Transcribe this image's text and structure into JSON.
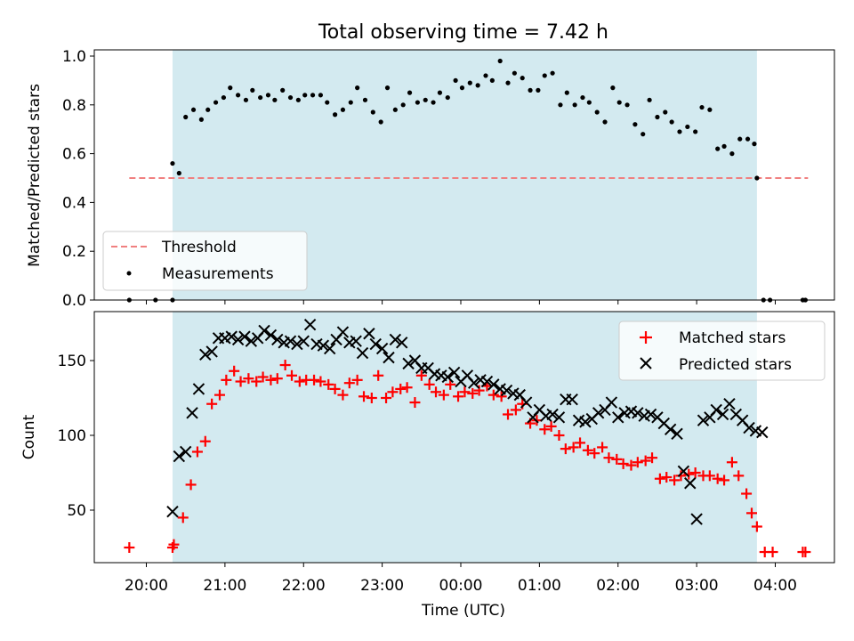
{
  "chart_data": [
    {
      "type": "scatter",
      "title": "Total observing time = 7.42 h",
      "ylabel": "Matched/Predicted stars",
      "xlabel": "",
      "ylim": [
        0,
        1.0
      ],
      "yticks": [
        "0.0",
        "0.2",
        "0.4",
        "0.6",
        "0.8",
        "1.0"
      ],
      "shaded_interval": [
        "20:20",
        "03:46"
      ],
      "threshold": {
        "name": "Threshold",
        "value": 0.5,
        "x_range": [
          "19:47",
          "04:25"
        ],
        "color": "#f08080"
      },
      "legend": {
        "placement": "lower-left",
        "entries": [
          "Threshold",
          "Measurements"
        ]
      },
      "series": [
        {
          "name": "Measurements",
          "color": "#000000",
          "x": [
            "19:47",
            "20:07",
            "20:20",
            "20:20",
            "20:25",
            "20:30",
            "20:36",
            "20:42",
            "20:47",
            "20:53",
            "20:59",
            "21:04",
            "21:10",
            "21:16",
            "21:21",
            "21:27",
            "21:33",
            "21:38",
            "21:44",
            "21:50",
            "21:56",
            "22:01",
            "22:07",
            "22:13",
            "22:18",
            "22:24",
            "22:30",
            "22:36",
            "22:41",
            "22:47",
            "22:53",
            "22:59",
            "23:04",
            "23:10",
            "23:16",
            "23:21",
            "23:27",
            "23:33",
            "23:39",
            "23:44",
            "23:50",
            "23:56",
            "00:01",
            "00:07",
            "00:13",
            "00:19",
            "00:24",
            "00:30",
            "00:36",
            "00:41",
            "00:47",
            "00:53",
            "00:59",
            "01:04",
            "01:10",
            "01:16",
            "01:21",
            "01:27",
            "01:33",
            "01:38",
            "01:44",
            "01:50",
            "01:56",
            "02:01",
            "02:07",
            "02:13",
            "02:19",
            "02:24",
            "02:30",
            "02:36",
            "02:41",
            "02:47",
            "02:53",
            "02:59",
            "03:04",
            "03:10",
            "03:16",
            "03:21",
            "03:27",
            "03:33",
            "03:39",
            "03:44",
            "03:46",
            "03:51",
            "03:56",
            "04:21",
            "04:23"
          ],
          "y": [
            0.0,
            0.0,
            0.0,
            0.56,
            0.52,
            0.75,
            0.78,
            0.74,
            0.78,
            0.81,
            0.83,
            0.87,
            0.84,
            0.82,
            0.86,
            0.83,
            0.84,
            0.82,
            0.86,
            0.83,
            0.82,
            0.84,
            0.84,
            0.84,
            0.81,
            0.76,
            0.78,
            0.81,
            0.87,
            0.82,
            0.77,
            0.73,
            0.87,
            0.78,
            0.8,
            0.85,
            0.81,
            0.82,
            0.81,
            0.85,
            0.83,
            0.9,
            0.87,
            0.89,
            0.88,
            0.92,
            0.9,
            0.98,
            0.89,
            0.93,
            0.91,
            0.86,
            0.86,
            0.92,
            0.93,
            0.8,
            0.85,
            0.8,
            0.83,
            0.81,
            0.77,
            0.73,
            0.87,
            0.81,
            0.8,
            0.72,
            0.68,
            0.82,
            0.75,
            0.77,
            0.73,
            0.69,
            0.71,
            0.69,
            0.79,
            0.78,
            0.62,
            0.63,
            0.6,
            0.66,
            0.66,
            0.64,
            0.5,
            0.0,
            0.0,
            0.0,
            0.0
          ]
        }
      ]
    },
    {
      "type": "scatter",
      "title": "",
      "xlabel": "Time (UTC)",
      "ylabel": "Count",
      "ylim": [
        15,
        180
      ],
      "yticks": [
        "50",
        "100",
        "150"
      ],
      "xticks": [
        "20:00",
        "21:00",
        "22:00",
        "23:00",
        "00:00",
        "01:00",
        "02:00",
        "03:00",
        "04:00"
      ],
      "shaded_interval": [
        "20:20",
        "03:46"
      ],
      "legend": {
        "placement": "top-right",
        "entries": [
          "Matched stars",
          "Predicted stars"
        ]
      },
      "series": [
        {
          "name": "Matched stars",
          "marker": "plus",
          "color": "#ff0000",
          "x": [
            "19:47",
            "20:20",
            "20:21",
            "20:28",
            "20:34",
            "20:39",
            "20:45",
            "20:50",
            "20:56",
            "21:01",
            "21:07",
            "21:12",
            "21:18",
            "21:24",
            "21:29",
            "21:35",
            "21:40",
            "21:46",
            "21:51",
            "21:57",
            "22:02",
            "22:08",
            "22:13",
            "22:19",
            "22:24",
            "22:30",
            "22:35",
            "22:41",
            "22:46",
            "22:52",
            "22:57",
            "23:03",
            "23:08",
            "23:14",
            "23:19",
            "23:25",
            "23:30",
            "23:36",
            "23:41",
            "23:47",
            "23:52",
            "23:58",
            "00:03",
            "00:09",
            "00:14",
            "00:20",
            "00:25",
            "00:31",
            "00:36",
            "00:42",
            "00:47",
            "00:53",
            "00:58",
            "01:04",
            "01:09",
            "01:15",
            "01:20",
            "01:26",
            "01:31",
            "01:37",
            "01:42",
            "01:48",
            "01:53",
            "01:59",
            "02:04",
            "02:10",
            "02:15",
            "02:21",
            "02:26",
            "02:32",
            "02:37",
            "02:43",
            "02:48",
            "02:54",
            "02:59",
            "03:05",
            "03:10",
            "03:16",
            "03:21",
            "03:27",
            "03:32",
            "03:38",
            "03:42",
            "03:46",
            "03:52",
            "03:58",
            "04:21",
            "04:23"
          ],
          "y": [
            25,
            25,
            27,
            45,
            67,
            89,
            96,
            121,
            127,
            137,
            143,
            136,
            138,
            136,
            139,
            137,
            138,
            147,
            140,
            136,
            137,
            137,
            136,
            134,
            131,
            127,
            135,
            137,
            126,
            125,
            140,
            125,
            129,
            131,
            132,
            122,
            140,
            134,
            129,
            127,
            134,
            126,
            129,
            128,
            130,
            133,
            127,
            126,
            114,
            117,
            121,
            108,
            110,
            104,
            106,
            100,
            91,
            92,
            95,
            90,
            88,
            92,
            85,
            84,
            81,
            80,
            82,
            83,
            85,
            71,
            72,
            70,
            73,
            74,
            75,
            73,
            73,
            71,
            70,
            82,
            73,
            61,
            48,
            39,
            22,
            22,
            22,
            22
          ]
        },
        {
          "name": "Predicted stars",
          "marker": "x",
          "color": "#000000",
          "x": [
            "20:20",
            "20:25",
            "20:30",
            "20:35",
            "20:40",
            "20:45",
            "20:50",
            "20:55",
            "21:00",
            "21:05",
            "21:10",
            "21:15",
            "21:20",
            "21:25",
            "21:30",
            "21:35",
            "21:40",
            "21:45",
            "21:50",
            "21:55",
            "22:00",
            "22:05",
            "22:10",
            "22:15",
            "22:20",
            "22:25",
            "22:30",
            "22:35",
            "22:40",
            "22:45",
            "22:50",
            "22:55",
            "23:00",
            "23:05",
            "23:10",
            "23:15",
            "23:20",
            "23:25",
            "23:30",
            "23:35",
            "23:40",
            "23:45",
            "23:50",
            "23:55",
            "00:00",
            "00:05",
            "00:10",
            "00:15",
            "00:20",
            "00:25",
            "00:30",
            "00:35",
            "00:40",
            "00:45",
            "00:50",
            "00:55",
            "01:00",
            "01:05",
            "01:10",
            "01:15",
            "01:20",
            "01:25",
            "01:30",
            "01:35",
            "01:40",
            "01:45",
            "01:50",
            "01:55",
            "02:00",
            "02:05",
            "02:10",
            "02:15",
            "02:20",
            "02:25",
            "02:30",
            "02:35",
            "02:40",
            "02:45",
            "02:50",
            "02:55",
            "03:00",
            "03:05",
            "03:10",
            "03:15",
            "03:20",
            "03:25",
            "03:30",
            "03:35",
            "03:40",
            "03:45",
            "03:50"
          ],
          "y": [
            49,
            86,
            89,
            115,
            131,
            154,
            156,
            165,
            165,
            166,
            164,
            166,
            163,
            165,
            170,
            167,
            164,
            162,
            163,
            161,
            163,
            174,
            161,
            160,
            158,
            164,
            169,
            162,
            163,
            155,
            168,
            161,
            158,
            152,
            164,
            162,
            148,
            150,
            145,
            145,
            141,
            140,
            139,
            142,
            136,
            140,
            135,
            137,
            136,
            134,
            131,
            130,
            128,
            127,
            122,
            112,
            117,
            113,
            114,
            112,
            124,
            124,
            110,
            109,
            111,
            115,
            117,
            122,
            112,
            115,
            116,
            115,
            113,
            114,
            112,
            108,
            104,
            101,
            76,
            68,
            44,
            110,
            112,
            117,
            114,
            121,
            114,
            110,
            105,
            103,
            102
          ]
        }
      ]
    }
  ]
}
